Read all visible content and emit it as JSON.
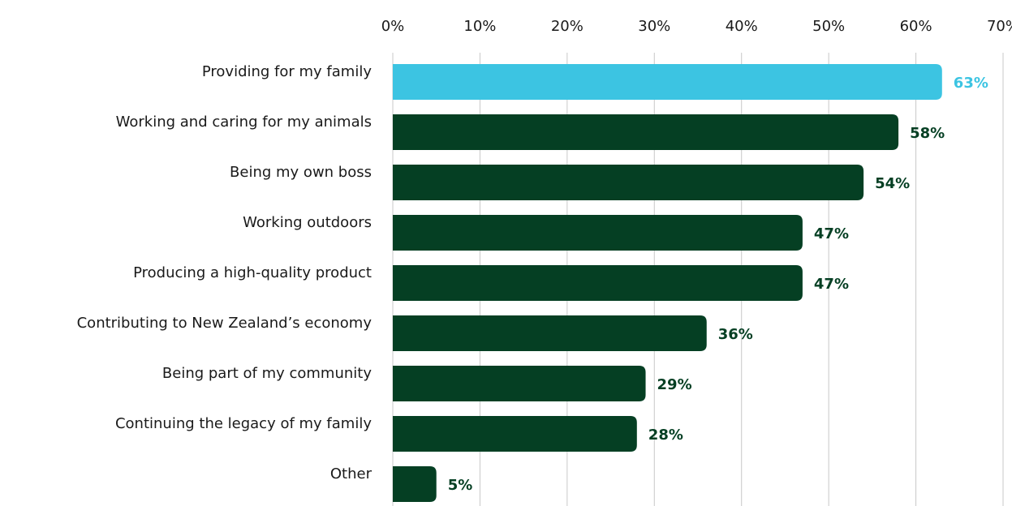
{
  "chart_data": {
    "type": "bar",
    "orientation": "horizontal",
    "title": "",
    "xlabel": "",
    "ylabel": "",
    "xlim": [
      0,
      70
    ],
    "x_tick_values": [
      0,
      10,
      20,
      30,
      40,
      50,
      60,
      70
    ],
    "x_tick_labels": [
      "0%",
      "10%",
      "20%",
      "30%",
      "40%",
      "50%",
      "60%",
      "70%"
    ],
    "x_axis_position": "top",
    "grid": true,
    "legend": "none",
    "categories": [
      "Providing for my family",
      "Working and caring for my animals",
      "Being my own boss",
      "Working outdoors",
      "Producing a high-quality product",
      "Contributing to New Zealand’s economy",
      "Being part of my community",
      "Continuing the legacy of my family",
      "Other"
    ],
    "values": [
      63,
      58,
      54,
      47,
      47,
      36,
      29,
      28,
      5
    ],
    "value_labels": [
      "63%",
      "58%",
      "54%",
      "47%",
      "47%",
      "36%",
      "29%",
      "28%",
      "5%"
    ],
    "highlight_index": 0,
    "colors": {
      "highlight": "#3cc4e2",
      "default": "#053f23",
      "gridline": "#c8c8c8",
      "text": "#1a1a1a"
    }
  }
}
